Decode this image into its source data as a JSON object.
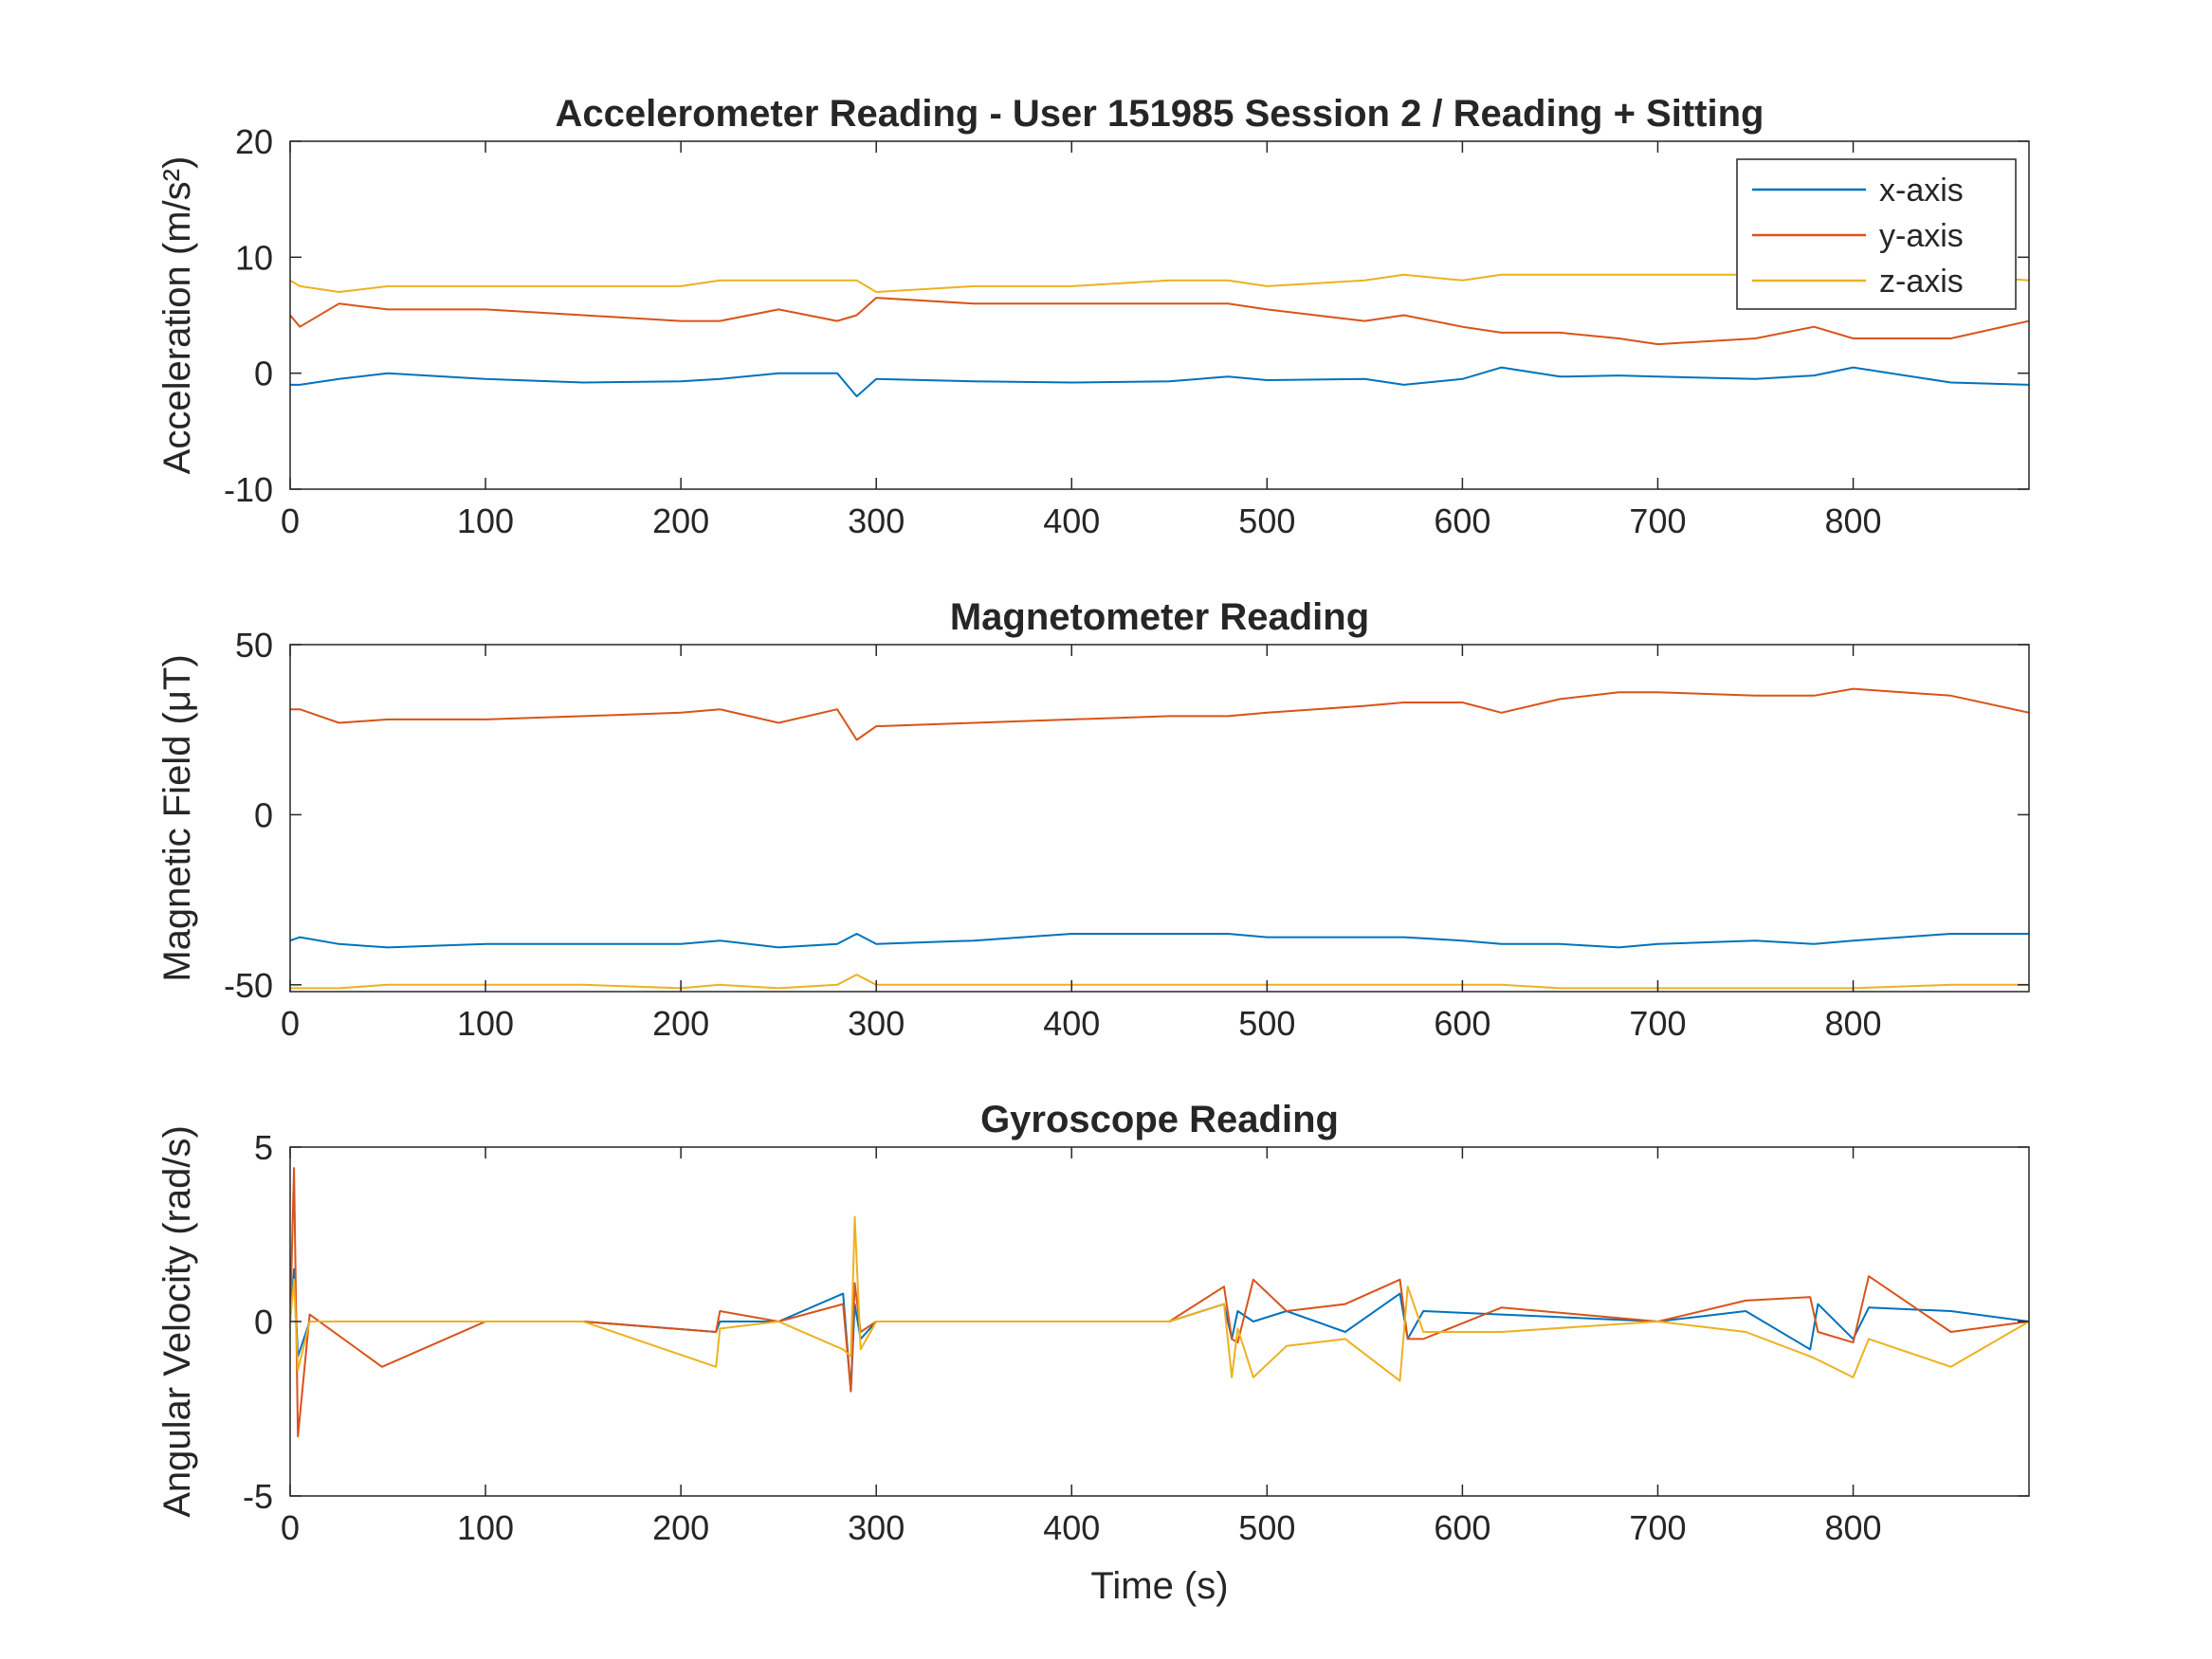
{
  "chart_data": [
    {
      "type": "line",
      "title": "Accelerometer Reading - User 151985 Session 2 / Reading + Sitting",
      "xlabel": "",
      "ylabel": "Acceleration (m/s²)",
      "xlim": [
        0,
        890
      ],
      "ylim": [
        -10,
        20
      ],
      "xticks": [
        "0",
        "100",
        "200",
        "300",
        "400",
        "500",
        "600",
        "700",
        "800"
      ],
      "yticks": [
        "-10",
        "0",
        "10",
        "20"
      ],
      "grid": false,
      "legend": {
        "placement": "top-right",
        "entries": [
          "x-axis",
          "y-axis",
          "z-axis"
        ]
      },
      "x": [
        0,
        5,
        25,
        50,
        100,
        150,
        200,
        220,
        250,
        280,
        290,
        300,
        350,
        400,
        450,
        480,
        500,
        550,
        570,
        600,
        620,
        650,
        680,
        700,
        750,
        780,
        800,
        850,
        890
      ],
      "series": [
        {
          "name": "x-axis",
          "color": "#0072BD",
          "values": [
            -1,
            -1,
            -0.5,
            0,
            -0.5,
            -0.8,
            -0.7,
            -0.5,
            0,
            0,
            -2,
            -0.5,
            -0.7,
            -0.8,
            -0.7,
            -0.3,
            -0.6,
            -0.5,
            -1,
            -0.5,
            0.5,
            -0.3,
            -0.2,
            -0.3,
            -0.5,
            -0.2,
            0.5,
            -0.8,
            -1
          ]
        },
        {
          "name": "y-axis",
          "color": "#D95319",
          "values": [
            5,
            4,
            6,
            5.5,
            5.5,
            5,
            4.5,
            4.5,
            5.5,
            4.5,
            5,
            6.5,
            6,
            6,
            6,
            6,
            5.5,
            4.5,
            5,
            4,
            3.5,
            3.5,
            3,
            2.5,
            3,
            4,
            3,
            3,
            4.5
          ]
        },
        {
          "name": "z-axis",
          "color": "#EDB120",
          "values": [
            8,
            7.5,
            7,
            7.5,
            7.5,
            7.5,
            7.5,
            8,
            8,
            8,
            8,
            7,
            7.5,
            7.5,
            8,
            8,
            7.5,
            8,
            8.5,
            8,
            8.5,
            8.5,
            8.5,
            8.5,
            8.5,
            8.5,
            8.5,
            8.5,
            8
          ]
        }
      ]
    },
    {
      "type": "line",
      "title": "Magnetometer Reading",
      "xlabel": "",
      "ylabel": "Magnetic Field (μT)",
      "xlim": [
        0,
        890
      ],
      "ylim": [
        -52,
        50
      ],
      "xticks": [
        "0",
        "100",
        "200",
        "300",
        "400",
        "500",
        "600",
        "700",
        "800"
      ],
      "yticks": [
        "-50",
        "0",
        "50"
      ],
      "grid": false,
      "x": [
        0,
        5,
        25,
        50,
        100,
        150,
        200,
        220,
        250,
        280,
        290,
        300,
        350,
        400,
        450,
        480,
        500,
        550,
        570,
        600,
        620,
        650,
        680,
        700,
        750,
        780,
        800,
        850,
        890
      ],
      "series": [
        {
          "name": "x-axis",
          "color": "#0072BD",
          "values": [
            -37,
            -36,
            -38,
            -39,
            -38,
            -38,
            -38,
            -37,
            -39,
            -38,
            -35,
            -38,
            -37,
            -35,
            -35,
            -35,
            -36,
            -36,
            -36,
            -37,
            -38,
            -38,
            -39,
            -38,
            -37,
            -38,
            -37,
            -35,
            -35
          ]
        },
        {
          "name": "y-axis",
          "color": "#D95319",
          "values": [
            31,
            31,
            27,
            28,
            28,
            29,
            30,
            31,
            27,
            31,
            22,
            26,
            27,
            28,
            29,
            29,
            30,
            32,
            33,
            33,
            30,
            34,
            36,
            36,
            35,
            35,
            37,
            35,
            30
          ]
        },
        {
          "name": "z-axis",
          "color": "#EDB120",
          "values": [
            -51,
            -51,
            -51,
            -50,
            -50,
            -50,
            -51,
            -50,
            -51,
            -50,
            -47,
            -50,
            -50,
            -50,
            -50,
            -50,
            -50,
            -50,
            -50,
            -50,
            -50,
            -51,
            -51,
            -51,
            -51,
            -51,
            -51,
            -50,
            -50
          ]
        }
      ]
    },
    {
      "type": "line",
      "title": "Gyroscope Reading",
      "xlabel": "Time (s)",
      "ylabel": "Angular Velocity (rad/s)",
      "xlim": [
        0,
        890
      ],
      "ylim": [
        -5,
        5
      ],
      "xticks": [
        "0",
        "100",
        "200",
        "300",
        "400",
        "500",
        "600",
        "700",
        "800"
      ],
      "yticks": [
        "-5",
        "0",
        "5"
      ],
      "grid": false,
      "x": [
        0,
        2,
        4,
        10,
        47,
        100,
        150,
        218,
        220,
        250,
        283,
        287,
        289,
        292,
        300,
        360,
        400,
        450,
        478,
        482,
        485,
        493,
        510,
        540,
        568,
        572,
        580,
        620,
        700,
        745,
        778,
        782,
        800,
        808,
        850,
        890
      ],
      "series": [
        {
          "name": "x-axis",
          "color": "#0072BD",
          "values": [
            0,
            1.5,
            -1,
            0,
            0,
            0,
            0,
            -0.3,
            0,
            0,
            0.8,
            -2,
            0.5,
            -0.5,
            0,
            0,
            0,
            0,
            0.5,
            -0.5,
            0.3,
            0,
            0.3,
            -0.3,
            0.8,
            -0.5,
            0.3,
            0.2,
            0,
            0.3,
            -0.8,
            0.5,
            -0.5,
            0.4,
            0.3,
            0
          ]
        },
        {
          "name": "y-axis",
          "color": "#D95319",
          "values": [
            0,
            4.4,
            -3.3,
            0.2,
            -1.3,
            0,
            0,
            -0.3,
            0.3,
            0,
            0.5,
            -2,
            1.1,
            -0.3,
            0,
            0,
            0,
            0,
            1,
            -0.5,
            -0.6,
            1.2,
            0.3,
            0.5,
            1.2,
            -0.5,
            -0.5,
            0.4,
            0,
            0.6,
            0.7,
            -0.3,
            -0.6,
            1.3,
            -0.3,
            0
          ]
        },
        {
          "name": "z-axis",
          "color": "#EDB120",
          "values": [
            0,
            1.2,
            -1.4,
            0,
            0,
            0,
            0,
            -1.3,
            -0.2,
            0,
            -0.8,
            -1,
            3,
            -0.8,
            0,
            0,
            0,
            0,
            0.5,
            -1.6,
            -0.2,
            -1.6,
            -0.7,
            -0.5,
            -1.7,
            1,
            -0.3,
            -0.3,
            0,
            -0.3,
            -1,
            -1.1,
            -1.6,
            -0.5,
            -1.3,
            0
          ]
        }
      ]
    }
  ]
}
